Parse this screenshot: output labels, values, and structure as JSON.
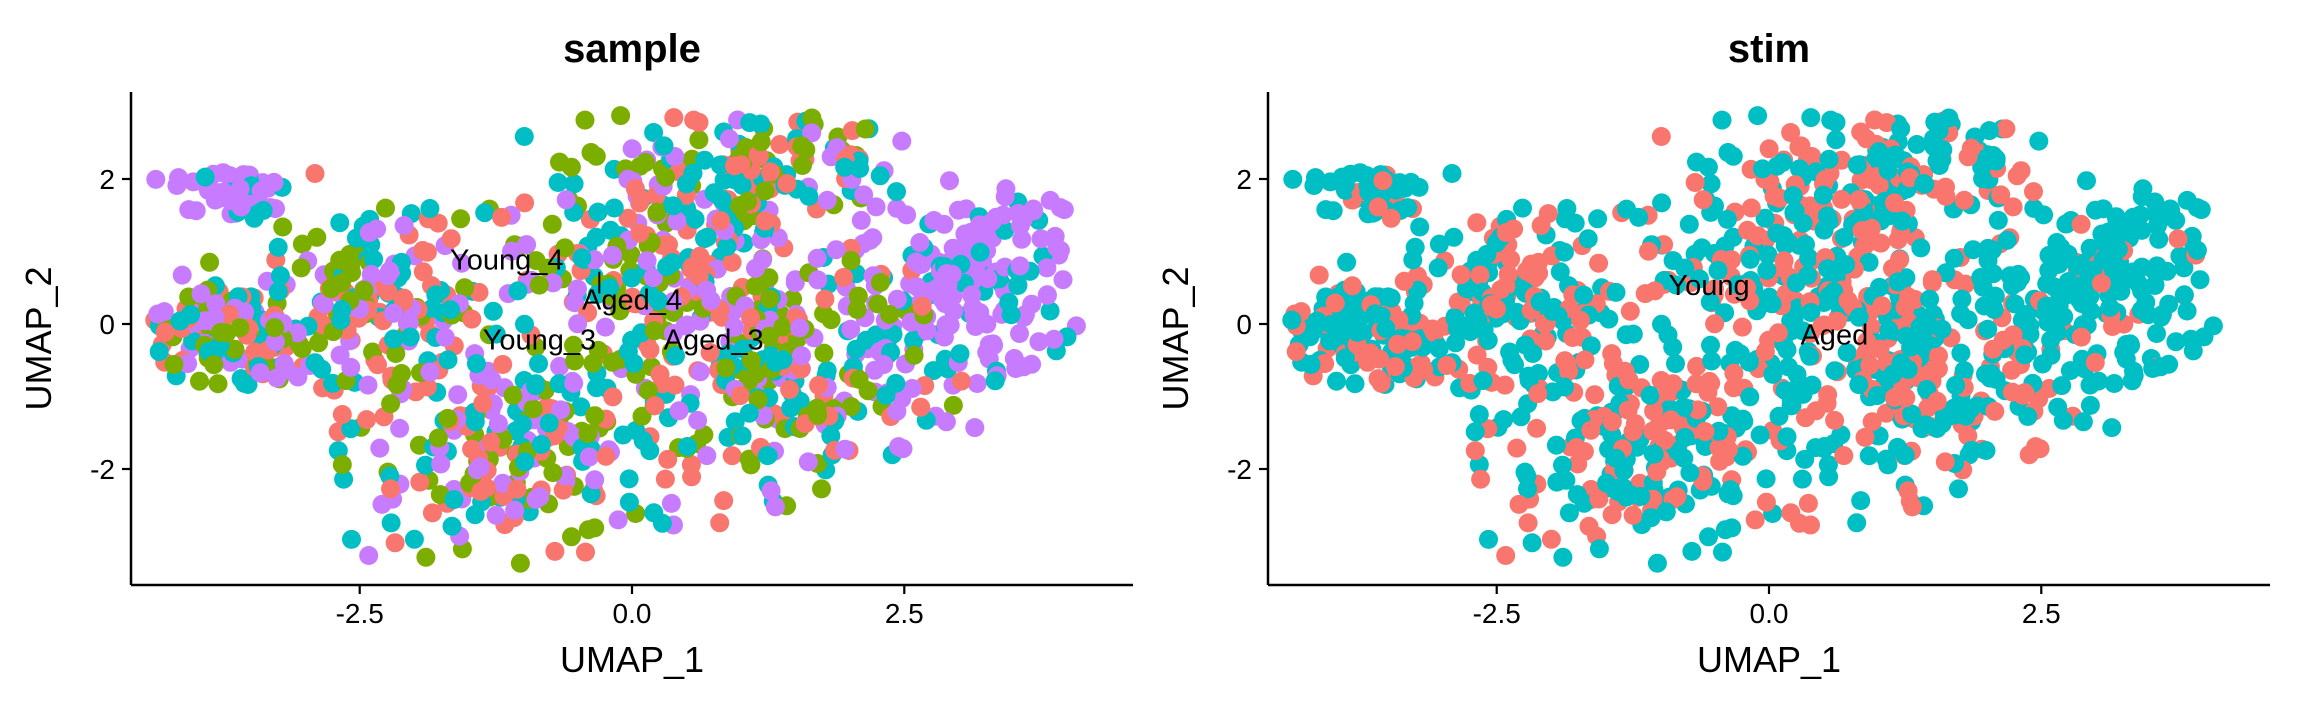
{
  "chart_data": [
    {
      "type": "scatter",
      "title": "sample",
      "xlabel": "UMAP_1",
      "ylabel": "UMAP_2",
      "xlim": [
        -4.6,
        4.6
      ],
      "ylim": [
        -3.6,
        3.2
      ],
      "x_ticks": [
        -2.5,
        0.0,
        2.5
      ],
      "x_tick_labels": [
        "-2.5",
        "0.0",
        "2.5"
      ],
      "y_ticks": [
        -2,
        0,
        2
      ],
      "y_tick_labels": [
        "-2",
        "0",
        "2"
      ],
      "grid": false,
      "series": [
        {
          "color": "#F8766D"
        },
        {
          "color": "#7CAE00"
        },
        {
          "color": "#00BFC4"
        },
        {
          "color": "#C77CFF"
        }
      ],
      "labels": [
        {
          "text": "Young_4",
          "x": -1.15,
          "y": 0.75
        },
        {
          "text": "Aged_4",
          "x": 0.0,
          "y": 0.2
        },
        {
          "text": "Young_3",
          "x": -0.85,
          "y": -0.35
        },
        {
          "text": "Aged_3",
          "x": 0.75,
          "y": -0.35
        }
      ]
    },
    {
      "type": "scatter",
      "title": "stim",
      "xlabel": "UMAP_1",
      "ylabel": "UMAP_2",
      "xlim": [
        -4.6,
        4.6
      ],
      "ylim": [
        -3.6,
        3.2
      ],
      "x_ticks": [
        -2.5,
        0.0,
        2.5
      ],
      "x_tick_labels": [
        "-2.5",
        "0.0",
        "2.5"
      ],
      "y_ticks": [
        -2,
        0,
        2
      ],
      "y_tick_labels": [
        "-2",
        "0",
        "2"
      ],
      "grid": false,
      "series": [
        {
          "color": "#F8766D"
        },
        {
          "color": "#00BFC4"
        }
      ],
      "labels": [
        {
          "text": "Young",
          "x": -0.55,
          "y": 0.4
        },
        {
          "text": "Aged",
          "x": 0.6,
          "y": -0.28
        }
      ]
    }
  ]
}
